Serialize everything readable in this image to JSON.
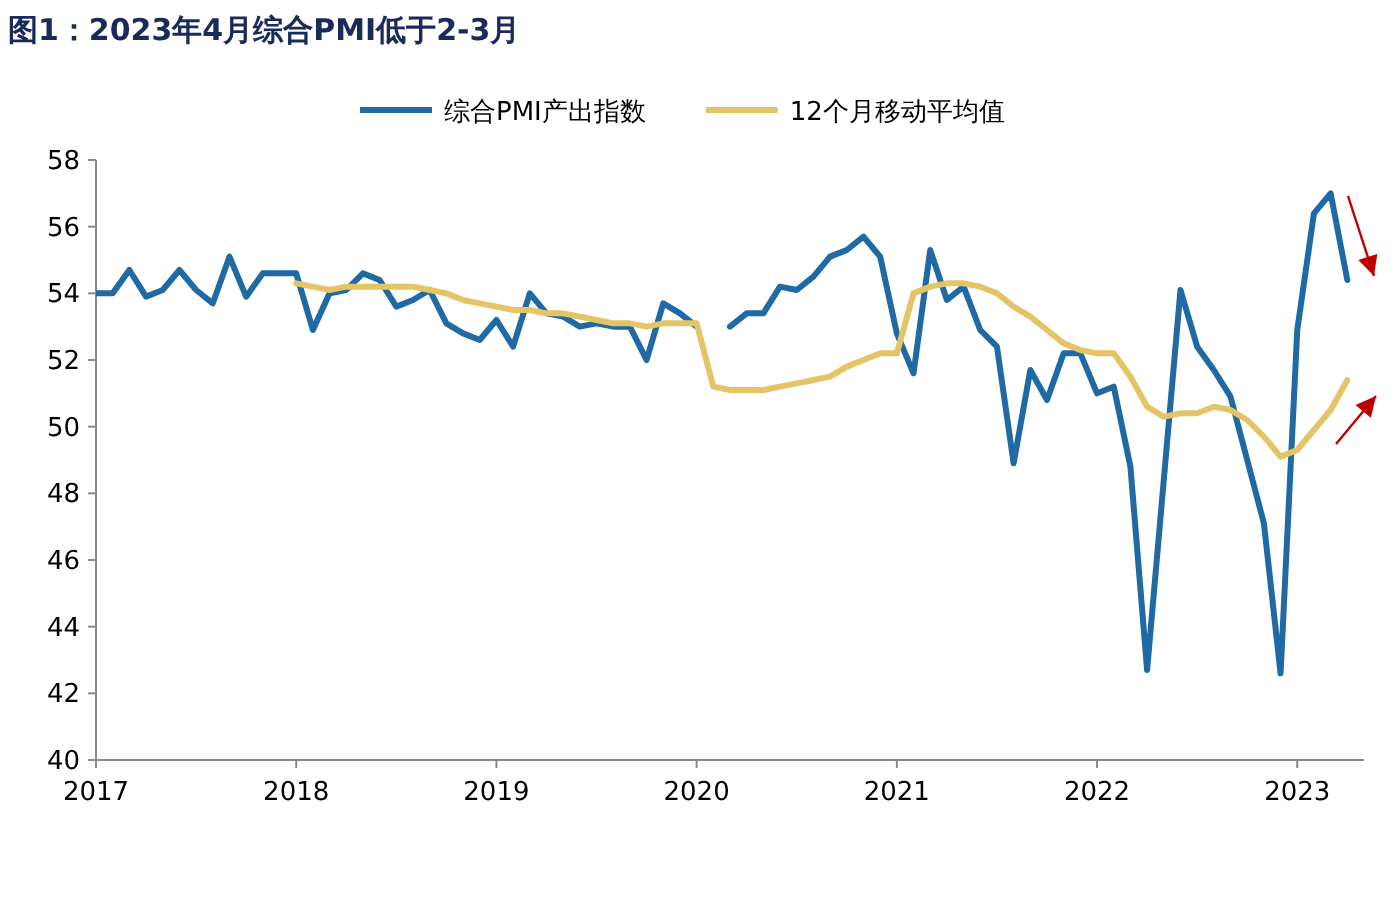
{
  "chart_data": {
    "type": "line",
    "title": "图1：2023年4月综合PMI低于2-3月",
    "x": [
      "2017-01",
      "2017-02",
      "2017-03",
      "2017-04",
      "2017-05",
      "2017-06",
      "2017-07",
      "2017-08",
      "2017-09",
      "2017-10",
      "2017-11",
      "2017-12",
      "2018-01",
      "2018-02",
      "2018-03",
      "2018-04",
      "2018-05",
      "2018-06",
      "2018-07",
      "2018-08",
      "2018-09",
      "2018-10",
      "2018-11",
      "2018-12",
      "2019-01",
      "2019-02",
      "2019-03",
      "2019-04",
      "2019-05",
      "2019-06",
      "2019-07",
      "2019-08",
      "2019-09",
      "2019-10",
      "2019-11",
      "2019-12",
      "2020-01",
      "2020-02",
      "2020-03",
      "2020-04",
      "2020-05",
      "2020-06",
      "2020-07",
      "2020-08",
      "2020-09",
      "2020-10",
      "2020-11",
      "2020-12",
      "2021-01",
      "2021-02",
      "2021-03",
      "2021-04",
      "2021-05",
      "2021-06",
      "2021-07",
      "2021-08",
      "2021-09",
      "2021-10",
      "2021-11",
      "2021-12",
      "2022-01",
      "2022-02",
      "2022-03",
      "2022-04",
      "2022-05",
      "2022-06",
      "2022-07",
      "2022-08",
      "2022-09",
      "2022-10",
      "2022-11",
      "2022-12",
      "2023-01",
      "2023-02",
      "2023-03",
      "2023-04"
    ],
    "series": [
      {
        "name": "综合PMI产出指数",
        "color": "#1f6aa5",
        "values": [
          54.0,
          54.0,
          54.7,
          53.9,
          54.1,
          54.7,
          54.1,
          53.7,
          55.1,
          53.9,
          54.6,
          54.6,
          54.6,
          52.9,
          54.0,
          54.1,
          54.6,
          54.4,
          53.6,
          53.8,
          54.1,
          53.1,
          52.8,
          52.6,
          53.2,
          52.4,
          54.0,
          53.4,
          53.3,
          53.0,
          53.1,
          53.0,
          53.0,
          52.0,
          53.7,
          53.4,
          53.0,
          null,
          53.0,
          53.4,
          53.4,
          54.2,
          54.1,
          54.5,
          55.1,
          55.3,
          55.7,
          55.1,
          52.8,
          51.6,
          55.3,
          53.8,
          54.2,
          52.9,
          52.4,
          48.9,
          51.7,
          50.8,
          52.2,
          52.2,
          51.0,
          51.2,
          48.8,
          42.7,
          48.4,
          54.1,
          52.4,
          51.7,
          50.9,
          49.0,
          47.1,
          42.6,
          52.9,
          56.4,
          57.0,
          54.4
        ]
      },
      {
        "name": "12个月移动平均值",
        "color": "#e3c567",
        "values": [
          null,
          null,
          null,
          null,
          null,
          null,
          null,
          null,
          null,
          null,
          null,
          null,
          54.3,
          54.2,
          54.1,
          54.2,
          54.2,
          54.2,
          54.2,
          54.2,
          54.1,
          54.0,
          53.8,
          53.7,
          53.6,
          53.5,
          53.5,
          53.4,
          53.4,
          53.3,
          53.2,
          53.1,
          53.1,
          53.0,
          53.1,
          53.1,
          53.1,
          51.2,
          51.1,
          51.1,
          51.1,
          51.2,
          51.3,
          51.4,
          51.5,
          51.8,
          52.0,
          52.2,
          52.2,
          54.0,
          54.2,
          54.3,
          54.3,
          54.2,
          54.0,
          53.6,
          53.3,
          52.9,
          52.5,
          52.3,
          52.2,
          52.2,
          51.5,
          50.6,
          50.3,
          50.4,
          50.4,
          50.6,
          50.5,
          50.2,
          49.7,
          49.1,
          49.3,
          49.9,
          50.5,
          51.4
        ]
      }
    ],
    "xlim": [
      "2017-01",
      "2023-05"
    ],
    "xticks": [
      "2017",
      "2018",
      "2019",
      "2020",
      "2021",
      "2022",
      "2023"
    ],
    "ylim": [
      40,
      58
    ],
    "yticks": [
      40,
      42,
      44,
      46,
      48,
      50,
      52,
      54,
      56,
      58
    ],
    "grid": false,
    "legend": "top",
    "marker": "none",
    "line_style": "solid"
  }
}
